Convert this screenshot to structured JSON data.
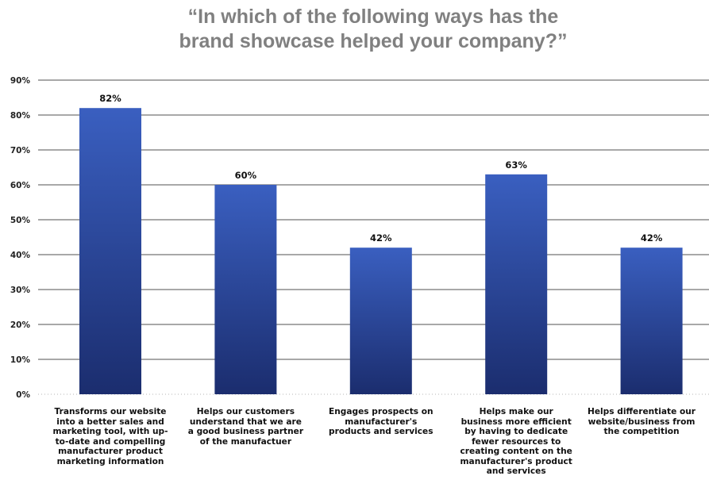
{
  "chart_data": {
    "type": "bar",
    "title_lines": [
      "“In which of the following ways has the",
      "brand showcase helped your company?”"
    ],
    "categories": [
      [
        "Transforms our website",
        "into a better sales and",
        "marketing tool, with up-",
        "to-date and compelling",
        "manufacturer product",
        "marketing information"
      ],
      [
        "Helps our customers",
        "understand that we are",
        "a good business partner",
        "of the manufactuer"
      ],
      [
        "Engages prospects on",
        "manufacturer's",
        "products and services"
      ],
      [
        "Helps make our",
        "business more efficient",
        "by having to dedicate",
        "fewer resources to",
        "creating content on the",
        "manufacturer's product",
        "and services"
      ],
      [
        "Helps differentiate our",
        "website/business from",
        "the competition"
      ]
    ],
    "values": [
      82,
      60,
      42,
      63,
      42
    ],
    "data_labels": [
      "82%",
      "60%",
      "42%",
      "63%",
      "42%"
    ],
    "ylim": [
      0,
      90
    ],
    "yticks": [
      "0%",
      "10%",
      "20%",
      "30%",
      "40%",
      "50%",
      "60%",
      "70%",
      "80%",
      "90%"
    ],
    "grid": true,
    "bar_color_top": "#3a5fc0",
    "bar_color_bottom": "#1b2d6e",
    "xlabel": "",
    "ylabel": ""
  }
}
